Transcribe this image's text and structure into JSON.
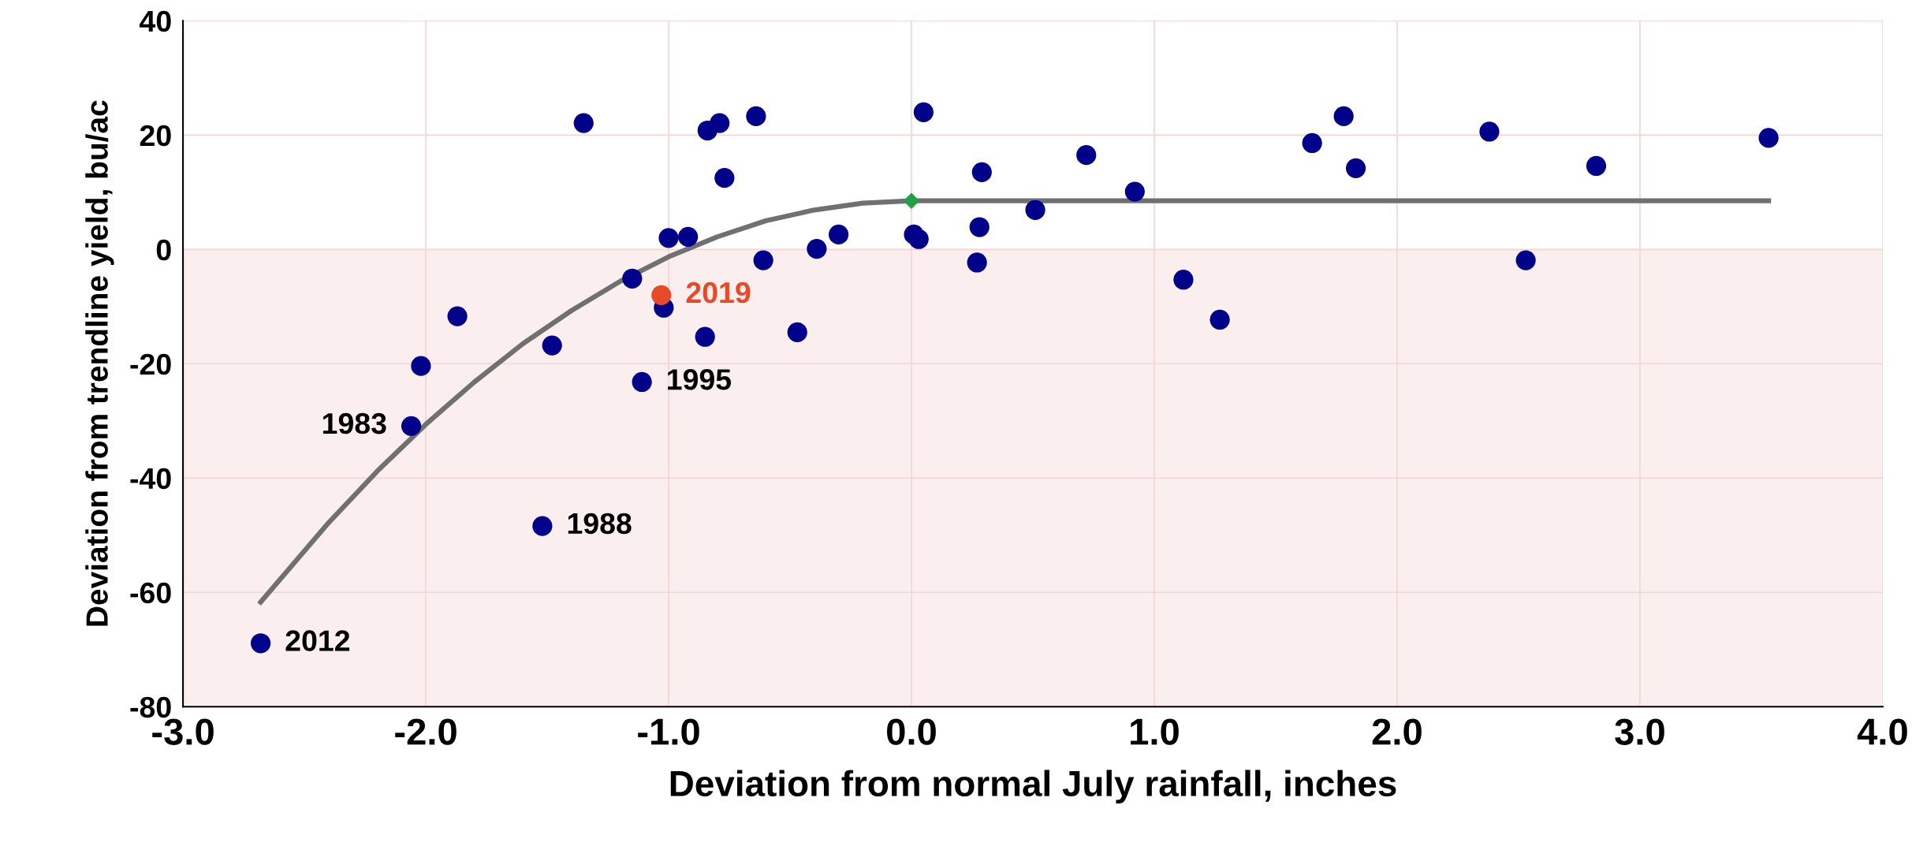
{
  "chart_data": {
    "type": "scatter",
    "xlabel": "Deviation from normal July rainfall, inches",
    "ylabel": "Deviation from trendline yield, bu/ac",
    "xlim": [
      -3.0,
      4.0
    ],
    "xticks": [
      {
        "value": -3,
        "label": "-3.0"
      },
      {
        "value": -2,
        "label": "-2.0"
      },
      {
        "value": -1,
        "label": "-1.0"
      },
      {
        "value": 0,
        "label": "0.0"
      },
      {
        "value": 1,
        "label": "1.0"
      },
      {
        "value": 2,
        "label": "2.0"
      },
      {
        "value": 3,
        "label": "3.0"
      },
      {
        "value": 4,
        "label": "4.0"
      }
    ],
    "ylim": [
      -80,
      40
    ],
    "yticks": [
      -80,
      -60,
      -40,
      -20,
      0,
      20,
      40
    ],
    "grid": true,
    "marker": "circle",
    "bands": [
      {
        "axis": "y",
        "from": -80,
        "to": 0,
        "color": "#fbeeee"
      }
    ],
    "series": [
      {
        "color": "#00008b",
        "x": [
          -2.68,
          -2.06,
          -2.02,
          -1.87,
          -1.52,
          -1.48,
          -1.35,
          -1.15,
          -1.11,
          -1.02,
          -1.0,
          -0.92,
          -0.85,
          -0.84,
          -0.79,
          -0.77,
          -0.64,
          -0.61,
          -0.47,
          -0.39,
          -0.3,
          0.01,
          0.03,
          0.05,
          0.27,
          0.28,
          0.29,
          0.51,
          0.72,
          0.92,
          1.12,
          1.27,
          1.65,
          1.78,
          1.83,
          2.38,
          2.53,
          2.82,
          3.53
        ],
        "values": [
          -68.9,
          -30.9,
          -20.4,
          -11.7,
          -48.4,
          -16.8,
          22.1,
          -5.1,
          -23.2,
          -10.2,
          2.0,
          2.2,
          -15.3,
          20.8,
          22.1,
          12.5,
          23.3,
          -1.9,
          -14.5,
          0.1,
          2.6,
          2.6,
          1.8,
          24.0,
          -2.3,
          3.9,
          13.5,
          6.9,
          16.5,
          10.1,
          -5.3,
          -12.3,
          18.6,
          23.3,
          14.2,
          20.6,
          -1.9,
          14.6,
          19.5
        ]
      },
      {
        "color": "#e84a27",
        "x": [
          -1.03
        ],
        "values": [
          -8.0
        ]
      },
      {
        "type": "line",
        "color": "#707070",
        "marker": "none",
        "line_style": "solid",
        "x": [
          -2.68,
          -2.4,
          -2.2,
          -2.0,
          -1.8,
          -1.6,
          -1.4,
          -1.2,
          -1.0,
          -0.8,
          -0.6,
          -0.4,
          -0.2,
          0.0,
          3.53
        ],
        "values": [
          -61.7,
          -47.8,
          -38.8,
          -30.6,
          -23.2,
          -16.5,
          -10.7,
          -5.6,
          -1.3,
          2.2,
          5.0,
          6.9,
          8.1,
          8.5,
          8.5
        ]
      },
      {
        "color": "#22a045",
        "marker": "diamond",
        "x": [
          0.0
        ],
        "values": [
          8.5
        ]
      }
    ],
    "annotations": [
      {
        "text": "2012",
        "x": -2.68,
        "y": -68.9
      },
      {
        "text": "1983",
        "x": -2.06,
        "y": -30.9
      },
      {
        "text": "1988",
        "x": -1.52,
        "y": -48.4
      },
      {
        "text": "1995",
        "x": -1.11,
        "y": -23.2
      },
      {
        "text": "2019",
        "x": -1.03,
        "y": -8.0
      }
    ]
  }
}
